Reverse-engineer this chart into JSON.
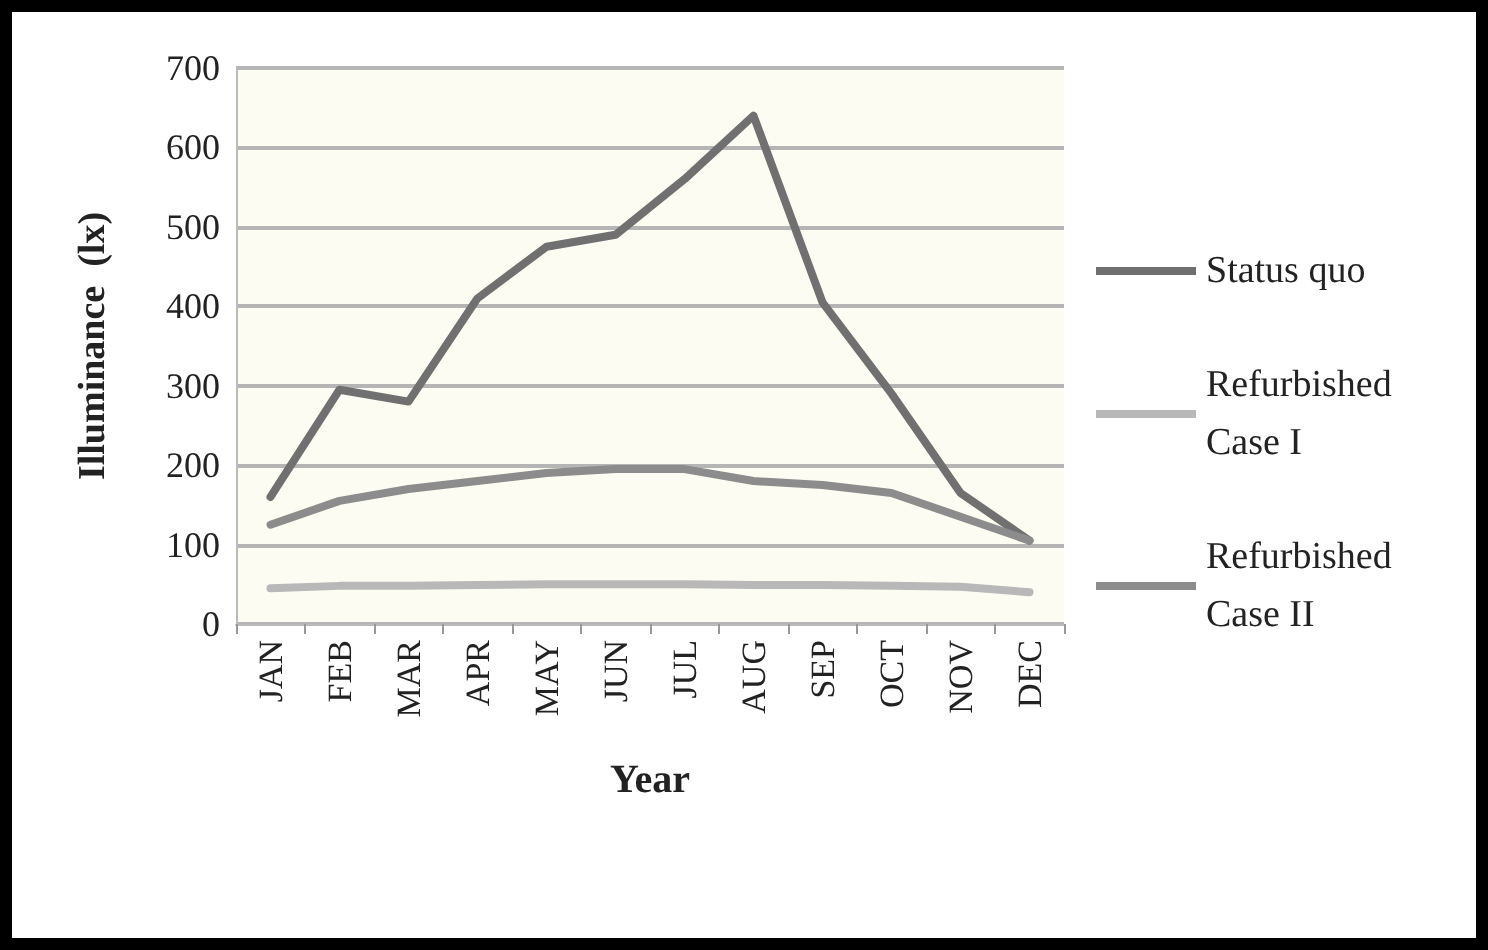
{
  "chart_data": {
    "type": "line",
    "xlabel": "Year",
    "ylabel": "Illuminance  (lx)",
    "categories": [
      "JAN",
      "FEB",
      "MAR",
      "APR",
      "MAY",
      "JUN",
      "JUL",
      "AUG",
      "SEP",
      "OCT",
      "NOV",
      "DEC"
    ],
    "series": [
      {
        "name": "Status quo",
        "color": "#707070",
        "values": [
          160,
          295,
          280,
          410,
          475,
          490,
          560,
          640,
          405,
          290,
          165,
          105
        ]
      },
      {
        "name": "Refurbished Case I",
        "color": "#b8b8b8",
        "values": [
          45,
          48,
          48,
          49,
          50,
          50,
          50,
          49,
          49,
          48,
          47,
          40
        ]
      },
      {
        "name": "Refurbished Case II",
        "color": "#8c8c8c",
        "values": [
          125,
          155,
          170,
          180,
          190,
          195,
          195,
          180,
          175,
          165,
          135,
          105
        ]
      }
    ],
    "ylim": [
      0,
      700
    ],
    "yticks": [
      0,
      100,
      200,
      300,
      400,
      500,
      600,
      700
    ],
    "grid": "y",
    "legend": "right",
    "marker": "none",
    "line_style": "solid"
  }
}
